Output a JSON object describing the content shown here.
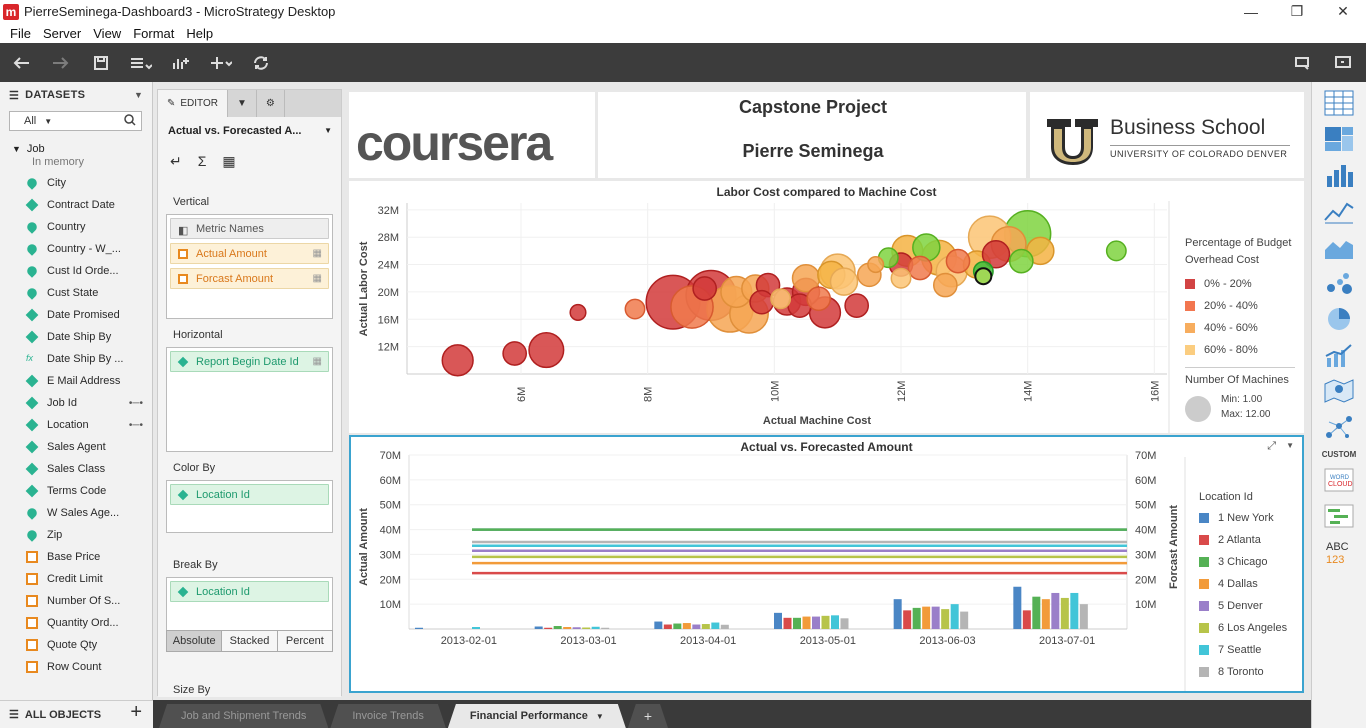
{
  "window": {
    "title": "PierreSeminega-Dashboard3 - MicroStrategy Desktop"
  },
  "menu": [
    "File",
    "Server",
    "View",
    "Format",
    "Help"
  ],
  "datasets": {
    "header": "DATASETS",
    "filter": "All",
    "group": "Job",
    "group_sub": "In memory",
    "items": [
      {
        "label": "City",
        "icon": "geo-icon"
      },
      {
        "label": "Contract Date",
        "icon": "attribute-icon"
      },
      {
        "label": "Country",
        "icon": "geo-icon"
      },
      {
        "label": "Country - W_...",
        "icon": "geo-icon"
      },
      {
        "label": "Cust Id Orde...",
        "icon": "geo-icon"
      },
      {
        "label": "Cust State",
        "icon": "geo-icon"
      },
      {
        "label": "Date Promised",
        "icon": "attribute-icon"
      },
      {
        "label": "Date Ship By",
        "icon": "attribute-icon"
      },
      {
        "label": "Date Ship By ...",
        "icon": "fx-icon"
      },
      {
        "label": "E Mail Address",
        "icon": "attribute-icon"
      },
      {
        "label": "Job Id",
        "icon": "attribute-icon",
        "link": true
      },
      {
        "label": "Location",
        "icon": "attribute-icon",
        "link": true
      },
      {
        "label": "Sales Agent",
        "icon": "attribute-icon"
      },
      {
        "label": "Sales Class",
        "icon": "attribute-icon"
      },
      {
        "label": "Terms Code",
        "icon": "attribute-icon"
      },
      {
        "label": "W Sales Age...",
        "icon": "geo-icon"
      },
      {
        "label": "Zip",
        "icon": "geo-icon"
      },
      {
        "label": "Base Price",
        "icon": "metric-icon"
      },
      {
        "label": "Credit Limit",
        "icon": "metric-icon"
      },
      {
        "label": "Number Of S...",
        "icon": "metric-icon"
      },
      {
        "label": "Quantity Ord...",
        "icon": "metric-icon"
      },
      {
        "label": "Quote Qty",
        "icon": "metric-icon"
      },
      {
        "label": "Row Count",
        "icon": "metric-icon"
      }
    ],
    "all_objects": "ALL OBJECTS"
  },
  "editor": {
    "tab": "EDITOR",
    "viz_name": "Actual vs. Forecasted A...",
    "vertical_label": "Vertical",
    "vertical": [
      "Metric Names",
      "Actual Amount",
      "Forcast Amount"
    ],
    "horizontal_label": "Horizontal",
    "horizontal": [
      "Report Begin Date Id"
    ],
    "colorby_label": "Color By",
    "colorby": [
      "Location Id"
    ],
    "breakby_label": "Break By",
    "breakby": [
      "Location Id"
    ],
    "modes": [
      "Absolute",
      "Stacked",
      "Percent"
    ],
    "sizeby_label": "Size By"
  },
  "header": {
    "coursera": "coursera",
    "project": "Capstone Project",
    "author": "Pierre Seminega",
    "school": "Business School",
    "school_sub": "UNIVERSITY OF COLORADO DENVER"
  },
  "chart_data": [
    {
      "type": "scatter",
      "title": "Labor Cost compared to Machine Cost",
      "xlabel": "Actual Machine Cost",
      "ylabel": "Actual Labor Cost",
      "xlim": [
        4.2,
        16.2
      ],
      "ylim": [
        8,
        33
      ],
      "x_ticks": [
        "6M",
        "8M",
        "10M",
        "12M",
        "14M",
        "16M"
      ],
      "y_ticks": [
        "12M",
        "16M",
        "20M",
        "24M",
        "28M",
        "32M"
      ],
      "legend_title": "Percentage of Budget Overhead Cost",
      "legend": [
        {
          "label": "0% - 20%",
          "color": "#d24343"
        },
        {
          "label": "20% - 40%",
          "color": "#f2764f"
        },
        {
          "label": "40% - 60%",
          "color": "#f7ad5e"
        },
        {
          "label": "60% - 80%",
          "color": "#fbcd80"
        }
      ],
      "size_legend": {
        "title": "Number Of Machines",
        "min": "Min: 1.00",
        "max": "Max: 12.00"
      },
      "points": [
        {
          "x": 5.0,
          "y": 10.0,
          "s": 6,
          "c": 0
        },
        {
          "x": 5.9,
          "y": 11.0,
          "s": 4,
          "c": 0
        },
        {
          "x": 6.4,
          "y": 11.5,
          "s": 7,
          "c": 0
        },
        {
          "x": 6.9,
          "y": 17.0,
          "s": 2,
          "c": 0
        },
        {
          "x": 7.8,
          "y": 17.5,
          "s": 3,
          "c": 1
        },
        {
          "x": 8.4,
          "y": 18.5,
          "s": 12,
          "c": 0
        },
        {
          "x": 8.7,
          "y": 17.8,
          "s": 9,
          "c": 1
        },
        {
          "x": 9.0,
          "y": 19.5,
          "s": 11,
          "c": 0
        },
        {
          "x": 9.3,
          "y": 17.5,
          "s": 10,
          "c": 2
        },
        {
          "x": 9.6,
          "y": 16.8,
          "s": 8,
          "c": 2
        },
        {
          "x": 9.4,
          "y": 20.0,
          "s": 6,
          "c": 2
        },
        {
          "x": 8.9,
          "y": 20.5,
          "s": 4,
          "c": 0
        },
        {
          "x": 9.7,
          "y": 20.5,
          "s": 5,
          "c": 2
        },
        {
          "x": 9.9,
          "y": 21.0,
          "s": 4,
          "c": 0
        },
        {
          "x": 10.1,
          "y": 19.0,
          "s": 3,
          "c": 3
        },
        {
          "x": 9.8,
          "y": 18.5,
          "s": 4,
          "c": 0
        },
        {
          "x": 10.2,
          "y": 18.6,
          "s": 5,
          "c": 0
        },
        {
          "x": 10.4,
          "y": 18.0,
          "s": 4,
          "c": 0
        },
        {
          "x": 10.5,
          "y": 20.0,
          "s": 5,
          "c": 0
        },
        {
          "x": 10.7,
          "y": 19.0,
          "s": 4,
          "c": 1
        },
        {
          "x": 10.8,
          "y": 17.0,
          "s": 6,
          "c": 0
        },
        {
          "x": 10.5,
          "y": 22.0,
          "s": 5,
          "c": 2
        },
        {
          "x": 10.9,
          "y": 22.5,
          "s": 5,
          "c": 4
        },
        {
          "x": 11.1,
          "y": 21.5,
          "s": 5,
          "c": 3
        },
        {
          "x": 11.0,
          "y": 23.0,
          "s": 7,
          "c": 3
        },
        {
          "x": 11.3,
          "y": 18.0,
          "s": 4,
          "c": 0
        },
        {
          "x": 11.6,
          "y": 24.0,
          "s": 2,
          "c": 2
        },
        {
          "x": 11.8,
          "y": 25.0,
          "s": 3,
          "c": 5
        },
        {
          "x": 12.0,
          "y": 24.0,
          "s": 4,
          "c": 0
        },
        {
          "x": 12.1,
          "y": 26.0,
          "s": 6,
          "c": 4
        },
        {
          "x": 12.4,
          "y": 26.5,
          "s": 5,
          "c": 5
        },
        {
          "x": 12.3,
          "y": 23.5,
          "s": 4,
          "c": 1
        },
        {
          "x": 12.6,
          "y": 25.0,
          "s": 7,
          "c": 4
        },
        {
          "x": 12.8,
          "y": 23.0,
          "s": 6,
          "c": 3
        },
        {
          "x": 12.9,
          "y": 24.5,
          "s": 4,
          "c": 1
        },
        {
          "x": 13.2,
          "y": 24.0,
          "s": 5,
          "c": 4
        },
        {
          "x": 13.3,
          "y": 23.0,
          "s": 3,
          "c": 6
        },
        {
          "x": 13.5,
          "y": 25.5,
          "s": 5,
          "c": 0
        },
        {
          "x": 13.4,
          "y": 28.0,
          "s": 9,
          "c": 3
        },
        {
          "x": 13.7,
          "y": 27.0,
          "s": 7,
          "c": 2
        },
        {
          "x": 14.0,
          "y": 28.5,
          "s": 10,
          "c": 5
        },
        {
          "x": 14.2,
          "y": 26.0,
          "s": 5,
          "c": 4
        },
        {
          "x": 13.9,
          "y": 24.5,
          "s": 4,
          "c": 5
        },
        {
          "x": 15.4,
          "y": 26.0,
          "s": 3,
          "c": 5
        },
        {
          "x": 12.7,
          "y": 21.0,
          "s": 4,
          "c": 2
        },
        {
          "x": 12.0,
          "y": 22.0,
          "s": 3,
          "c": 3
        },
        {
          "x": 11.5,
          "y": 22.5,
          "s": 4,
          "c": 2
        }
      ]
    },
    {
      "type": "bar",
      "title": "Actual vs. Forecasted Amount",
      "ylabel": "Actual Amount",
      "y2label": "Forcast Amount",
      "ylim": [
        0,
        70
      ],
      "y_ticks": [
        "10M",
        "20M",
        "30M",
        "40M",
        "50M",
        "60M",
        "70M"
      ],
      "categories": [
        "2013-02-01",
        "2013-03-01",
        "2013-04-01",
        "2013-05-01",
        "2013-06-03",
        "2013-07-01"
      ],
      "legend_title": "Location Id",
      "series": [
        {
          "name": "1 New York",
          "color": "#4a86c5",
          "values": [
            0.5,
            1.0,
            3.0,
            6.5,
            12.0,
            17.0
          ],
          "forecast": 40
        },
        {
          "name": "2 Atlanta",
          "color": "#d94a4a",
          "values": [
            0,
            0.5,
            1.8,
            4.5,
            7.5,
            7.5
          ],
          "forecast": 22.5
        },
        {
          "name": "3 Chicago",
          "color": "#55b155",
          "values": [
            0,
            1.2,
            2.2,
            4.5,
            8.5,
            13.0
          ],
          "forecast": 40
        },
        {
          "name": "4 Dallas",
          "color": "#f29b3a",
          "values": [
            0,
            0.8,
            2.4,
            5.0,
            9.0,
            12.0
          ],
          "forecast": 26.5
        },
        {
          "name": "5 Denver",
          "color": "#9a7fc9",
          "values": [
            0,
            0.7,
            1.8,
            5.0,
            9.0,
            14.5
          ],
          "forecast": 31.5
        },
        {
          "name": "6 Los Angeles",
          "color": "#b7c44a",
          "values": [
            0,
            0.6,
            2.0,
            5.3,
            8.0,
            12.5
          ],
          "forecast": 29
        },
        {
          "name": "7 Seattle",
          "color": "#42c5d8",
          "values": [
            0.8,
            0.9,
            2.6,
            5.5,
            10.0,
            14.5
          ],
          "forecast": 33.5
        },
        {
          "name": "8 Toronto",
          "color": "#b5b5b5",
          "values": [
            0,
            0.5,
            1.7,
            4.3,
            7.0,
            10.0
          ],
          "forecast": 35
        }
      ]
    }
  ],
  "sheets": [
    "Job and Shipment Trends",
    "Invoice Trends",
    "Financial Performance"
  ],
  "viz_gallery_label": "CUSTOM"
}
